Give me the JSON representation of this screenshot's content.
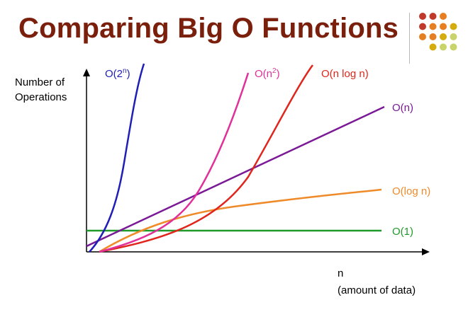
{
  "slide": {
    "title": "Comparing Big O Functions"
  },
  "chart_data": {
    "type": "line",
    "ylabel_line1": "Number of",
    "ylabel_line2": "Operations",
    "xlabel_line1": "n",
    "xlabel_line2": "(amount of data)",
    "series": [
      {
        "name": "O(2ⁿ)",
        "base": "O(2",
        "sup": "n",
        "tail": ")",
        "color": "#1f1fb8"
      },
      {
        "name": "O(n²)",
        "base": "O(n",
        "sup": "2",
        "tail": ")",
        "color": "#e0309a"
      },
      {
        "name": "O(n log n)",
        "base": "O(n log n)",
        "sup": "",
        "tail": "",
        "color": "#e0261c"
      },
      {
        "name": "O(n)",
        "base": "O(n)",
        "sup": "",
        "tail": "",
        "color": "#7a1a96"
      },
      {
        "name": "O(log n)",
        "base": "O(log n)",
        "sup": "",
        "tail": "",
        "color": "#ef8a28"
      },
      {
        "name": "O(1)",
        "base": "O(1)",
        "sup": "",
        "tail": "",
        "color": "#1f9a2a"
      }
    ]
  },
  "decor": {
    "dot_colors": [
      "#c0392b",
      "#e67e22",
      "#d4ac0d",
      "#c9d36b"
    ]
  }
}
